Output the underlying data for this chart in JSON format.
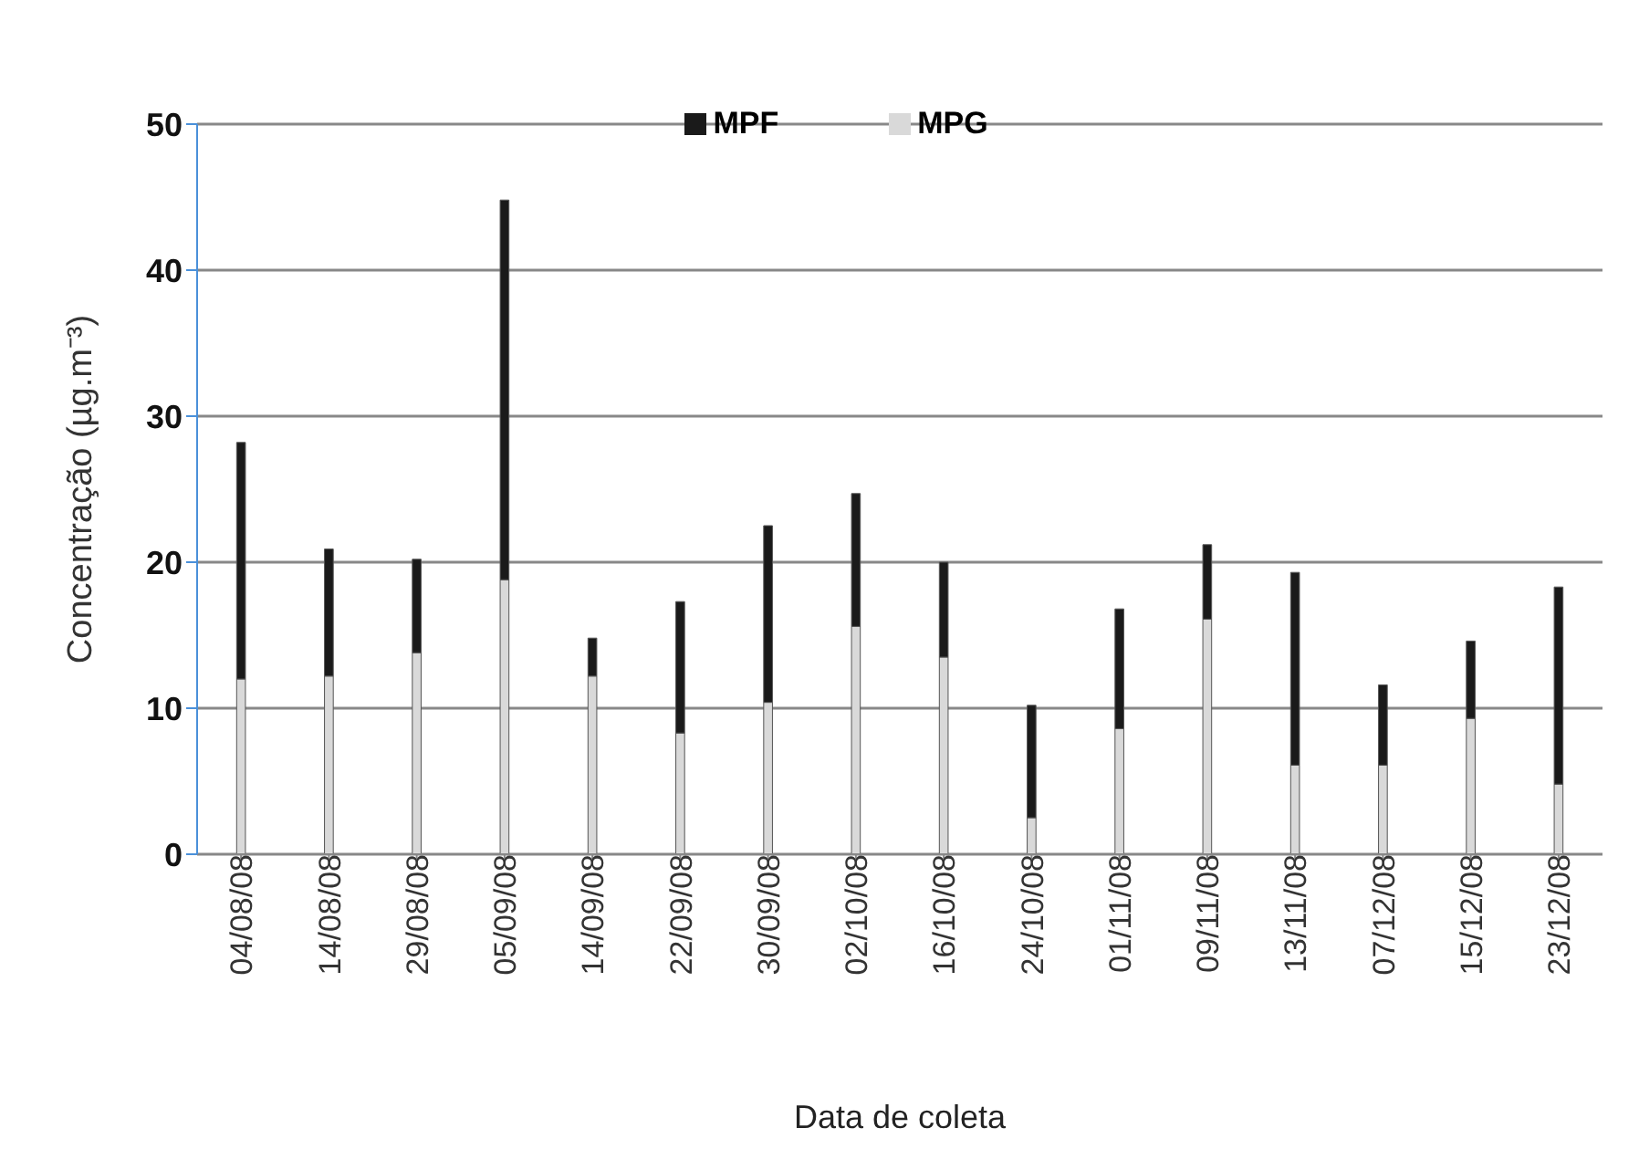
{
  "chart_data": {
    "type": "bar",
    "stacked": true,
    "xlabel": "Data de coleta",
    "ylabel": "Concentração (µg.m⁻³)",
    "categories": [
      "04/08/08",
      "14/08/08",
      "29/08/08",
      "05/09/08",
      "14/09/08",
      "22/09/08",
      "30/09/08",
      "02/10/08",
      "16/10/08",
      "24/10/08",
      "01/11/08",
      "09/11/08",
      "13/11/08",
      "07/12/08",
      "15/12/08",
      "23/12/08"
    ],
    "series": [
      {
        "name": "MPG",
        "color": "#d9d9d9",
        "values": [
          12.0,
          12.2,
          13.8,
          18.8,
          12.2,
          8.3,
          10.4,
          15.6,
          13.5,
          2.5,
          8.6,
          16.1,
          6.1,
          6.1,
          9.3,
          4.8
        ]
      },
      {
        "name": "MPF",
        "color": "#1a1a1a",
        "values": [
          16.2,
          8.7,
          6.4,
          26.0,
          2.6,
          9.0,
          12.1,
          9.1,
          6.5,
          7.7,
          8.2,
          5.1,
          13.2,
          5.5,
          5.3,
          13.5
        ]
      }
    ],
    "ylim": [
      0,
      50
    ],
    "yticks": [
      0,
      10,
      20,
      30,
      40,
      50
    ],
    "grid": "y",
    "legend": "top"
  }
}
